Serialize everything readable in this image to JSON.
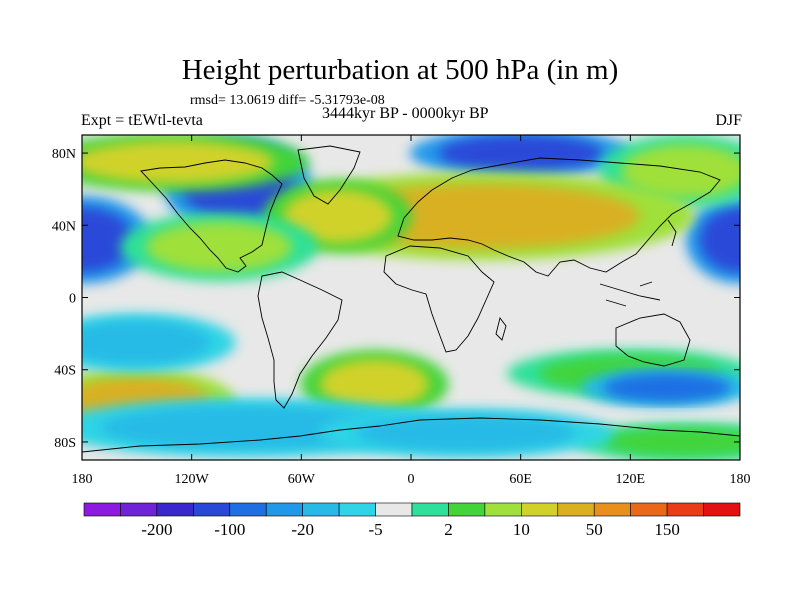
{
  "title": "Height perturbation at 500 hPa (in m)",
  "stats_text": "rmsd= 13.0619 diff= -5.31793e-08",
  "left_label": "Expt = tEWtl-tevta",
  "center_label": "3444kyr BP - 0000kyr BP",
  "right_label": "DJF",
  "chart_data": {
    "type": "heatmap",
    "projection": "cylindrical-equidistant",
    "title": "Height perturbation at 500 hPa (in m)",
    "units": "m",
    "x_range": [
      -180,
      180
    ],
    "y_range": [
      -90,
      90
    ],
    "x_ticks": [
      {
        "value": -180,
        "label": "180"
      },
      {
        "value": -120,
        "label": "120W"
      },
      {
        "value": -60,
        "label": "60W"
      },
      {
        "value": 0,
        "label": "0"
      },
      {
        "value": 60,
        "label": "60E"
      },
      {
        "value": 120,
        "label": "120E"
      },
      {
        "value": 180,
        "label": "180"
      }
    ],
    "y_ticks": [
      {
        "value": 80,
        "label": "80N"
      },
      {
        "value": 40,
        "label": "40N"
      },
      {
        "value": 0,
        "label": "0"
      },
      {
        "value": -40,
        "label": "40S"
      },
      {
        "value": -80,
        "label": "80S"
      }
    ],
    "colorbar": {
      "colors": [
        "#8c1ae0",
        "#6f22d8",
        "#3a28cf",
        "#2a48d8",
        "#1f6fe4",
        "#2199ea",
        "#28bae6",
        "#2fd4e6",
        "#e8e8e8",
        "#2fe09a",
        "#43d43a",
        "#9fe03a",
        "#d0d22a",
        "#d9b020",
        "#e9901c",
        "#ea6818",
        "#ea3c16",
        "#e21212"
      ],
      "level_labels": [
        {
          "after_index": 1,
          "label": "-200"
        },
        {
          "after_index": 3,
          "label": "-100"
        },
        {
          "after_index": 5,
          "label": "-20"
        },
        {
          "after_index": 7,
          "label": "-5"
        },
        {
          "after_index": 9,
          "label": "2"
        },
        {
          "after_index": 11,
          "label": "10"
        },
        {
          "after_index": 13,
          "label": "50"
        },
        {
          "after_index": 15,
          "label": "150"
        }
      ]
    },
    "anomalies": [
      {
        "lon": -180,
        "lat": 32,
        "rlon": 28,
        "rlat": 18,
        "level": 3,
        "note": "N Pacific low (west edge)"
      },
      {
        "lon": 180,
        "lat": 32,
        "rlon": 22,
        "rlat": 18,
        "level": 3,
        "note": "N Pacific low (east edge)"
      },
      {
        "lon": -95,
        "lat": 62,
        "rlon": 30,
        "rlat": 20,
        "level": 3,
        "note": "Canada low"
      },
      {
        "lon": 60,
        "lat": 80,
        "rlon": 45,
        "rlat": 10,
        "level": 3,
        "note": "Arctic low"
      },
      {
        "lon": -130,
        "lat": 75,
        "rlon": 55,
        "rlat": 12,
        "level": 12,
        "note": "Arctic/Alaska high"
      },
      {
        "lon": 150,
        "lat": 70,
        "rlon": 35,
        "rlat": 15,
        "level": 11,
        "note": "E Siberia high"
      },
      {
        "lon": 40,
        "lat": 45,
        "rlon": 85,
        "rlat": 18,
        "level": 13,
        "note": "Eurasian high belt"
      },
      {
        "lon": -40,
        "lat": 45,
        "rlon": 30,
        "rlat": 15,
        "level": 12,
        "note": "N Atlantic high"
      },
      {
        "lon": -105,
        "lat": 28,
        "rlon": 40,
        "rlat": 14,
        "level": 11,
        "note": "N America subtropical high"
      },
      {
        "lon": -150,
        "lat": -58,
        "rlon": 40,
        "rlat": 14,
        "level": 13,
        "note": "S Pacific high"
      },
      {
        "lon": -20,
        "lat": -48,
        "rlon": 30,
        "rlat": 14,
        "level": 12,
        "note": "S Atlantic high"
      },
      {
        "lon": 120,
        "lat": -42,
        "rlon": 50,
        "rlat": 10,
        "level": 10,
        "note": "S Indian Ocean high"
      },
      {
        "lon": 150,
        "lat": -80,
        "rlon": 45,
        "rlat": 8,
        "level": 10,
        "note": "Antarctic high"
      },
      {
        "lon": -90,
        "lat": -72,
        "rlon": 80,
        "rlat": 12,
        "level": 6,
        "note": "Southern Ocean low"
      },
      {
        "lon": 30,
        "lat": -75,
        "rlon": 60,
        "rlat": 10,
        "level": 6,
        "note": "Southern Ocean low E"
      },
      {
        "lon": -150,
        "lat": -25,
        "rlon": 40,
        "rlat": 12,
        "level": 6,
        "note": "S Pacific subtropical low"
      },
      {
        "lon": 140,
        "lat": -50,
        "rlon": 35,
        "rlat": 8,
        "level": 4,
        "note": "Australia-S low"
      }
    ]
  }
}
